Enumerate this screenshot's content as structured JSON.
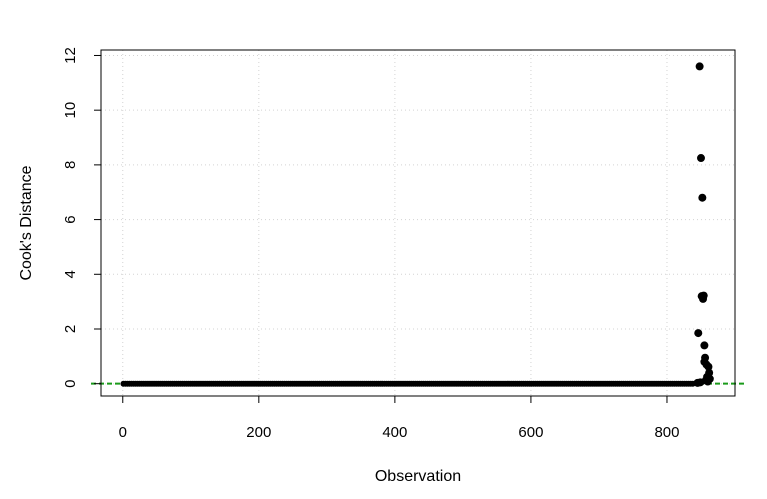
{
  "chart_data": {
    "type": "scatter",
    "title": "",
    "xlabel": "Observation",
    "ylabel": "Cook's Distance",
    "xlim": [
      -32,
      900
    ],
    "ylim": [
      -0.45,
      12.2
    ],
    "xticks": [
      0,
      200,
      400,
      600,
      800
    ],
    "yticks": [
      0,
      2,
      4,
      6,
      8,
      10,
      12
    ],
    "xtick_labels": [
      "0",
      "200",
      "400",
      "600",
      "800"
    ],
    "ytick_labels": [
      "0",
      "2",
      "4",
      "6",
      "8",
      "10",
      "12"
    ],
    "grid": true,
    "reference_line": {
      "y": 0.0047,
      "color": "#1a9a1a",
      "style": "dashed"
    },
    "baseline_points": {
      "x_start": 1,
      "x_end": 840,
      "y": 0,
      "color": "#000000"
    },
    "series": [
      {
        "color": "#000000",
        "points": [
          {
            "x": 848,
            "y": 11.6
          },
          {
            "x": 850,
            "y": 8.25
          },
          {
            "x": 852,
            "y": 6.8
          },
          {
            "x": 851,
            "y": 3.2
          },
          {
            "x": 854,
            "y": 3.22
          },
          {
            "x": 853,
            "y": 3.1
          },
          {
            "x": 846,
            "y": 1.85
          },
          {
            "x": 855,
            "y": 1.4
          },
          {
            "x": 856,
            "y": 0.95
          },
          {
            "x": 855,
            "y": 0.8
          },
          {
            "x": 858,
            "y": 0.7
          },
          {
            "x": 861,
            "y": 0.62
          },
          {
            "x": 862,
            "y": 0.4
          },
          {
            "x": 859,
            "y": 0.25
          },
          {
            "x": 863,
            "y": 0.18
          },
          {
            "x": 857,
            "y": 0.12
          },
          {
            "x": 860,
            "y": 0.08
          },
          {
            "x": 849,
            "y": 0.05
          },
          {
            "x": 845,
            "y": 0.03
          }
        ]
      }
    ]
  }
}
